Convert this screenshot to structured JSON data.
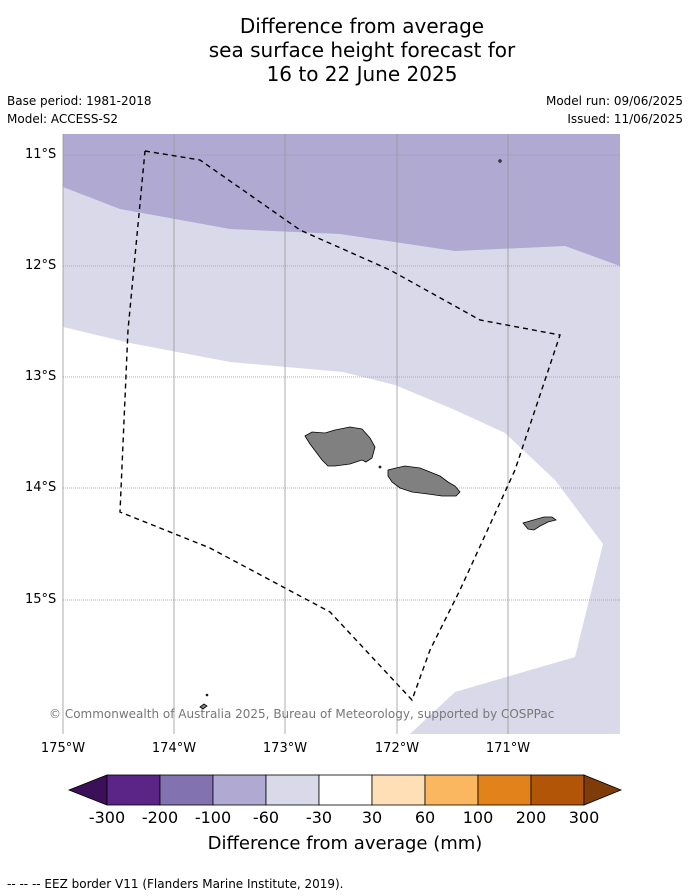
{
  "title": {
    "line1": "Difference from average",
    "line2": "sea surface height forecast for",
    "line3": "16 to 22 June 2025"
  },
  "meta": {
    "base_period": "Base period: 1981-2018",
    "model": "Model: ACCESS-S2",
    "model_run": "Model run: 09/06/2025",
    "issued": "Issued: 11/06/2025"
  },
  "map": {
    "lat_labels": [
      "11°S",
      "12°S",
      "13°S",
      "14°S",
      "15°S"
    ],
    "lon_labels": [
      "175°W",
      "174°W",
      "173°W",
      "172°W",
      "171°W"
    ],
    "copyright": "© Commonwealth of Australia 2025, Bureau of Meteorology, supported by COSPPac",
    "colors": {
      "minus100_to_minus60": "#b0a9d1",
      "minus60_to_minus30": "#d9d9ea",
      "neutral": "#ffffff",
      "land": "#808080",
      "grid": "#999999",
      "eez": "#000000"
    }
  },
  "colorbar": {
    "title": "Difference from average (mm)",
    "ticks": [
      "-300",
      "-200",
      "-100",
      "-60",
      "-30",
      "30",
      "60",
      "100",
      "200",
      "300"
    ],
    "colors": [
      "#3c0f59",
      "#5a2586",
      "#8272af",
      "#b0a9d1",
      "#d9d9ea",
      "#ffffff",
      "#ffdfb5",
      "#fbb75f",
      "#e2821b",
      "#b25507",
      "#7f3b08"
    ]
  },
  "footer": {
    "eez_note": "--  --  -- EEZ border V11 (Flanders Marine Institute, 2019)."
  }
}
